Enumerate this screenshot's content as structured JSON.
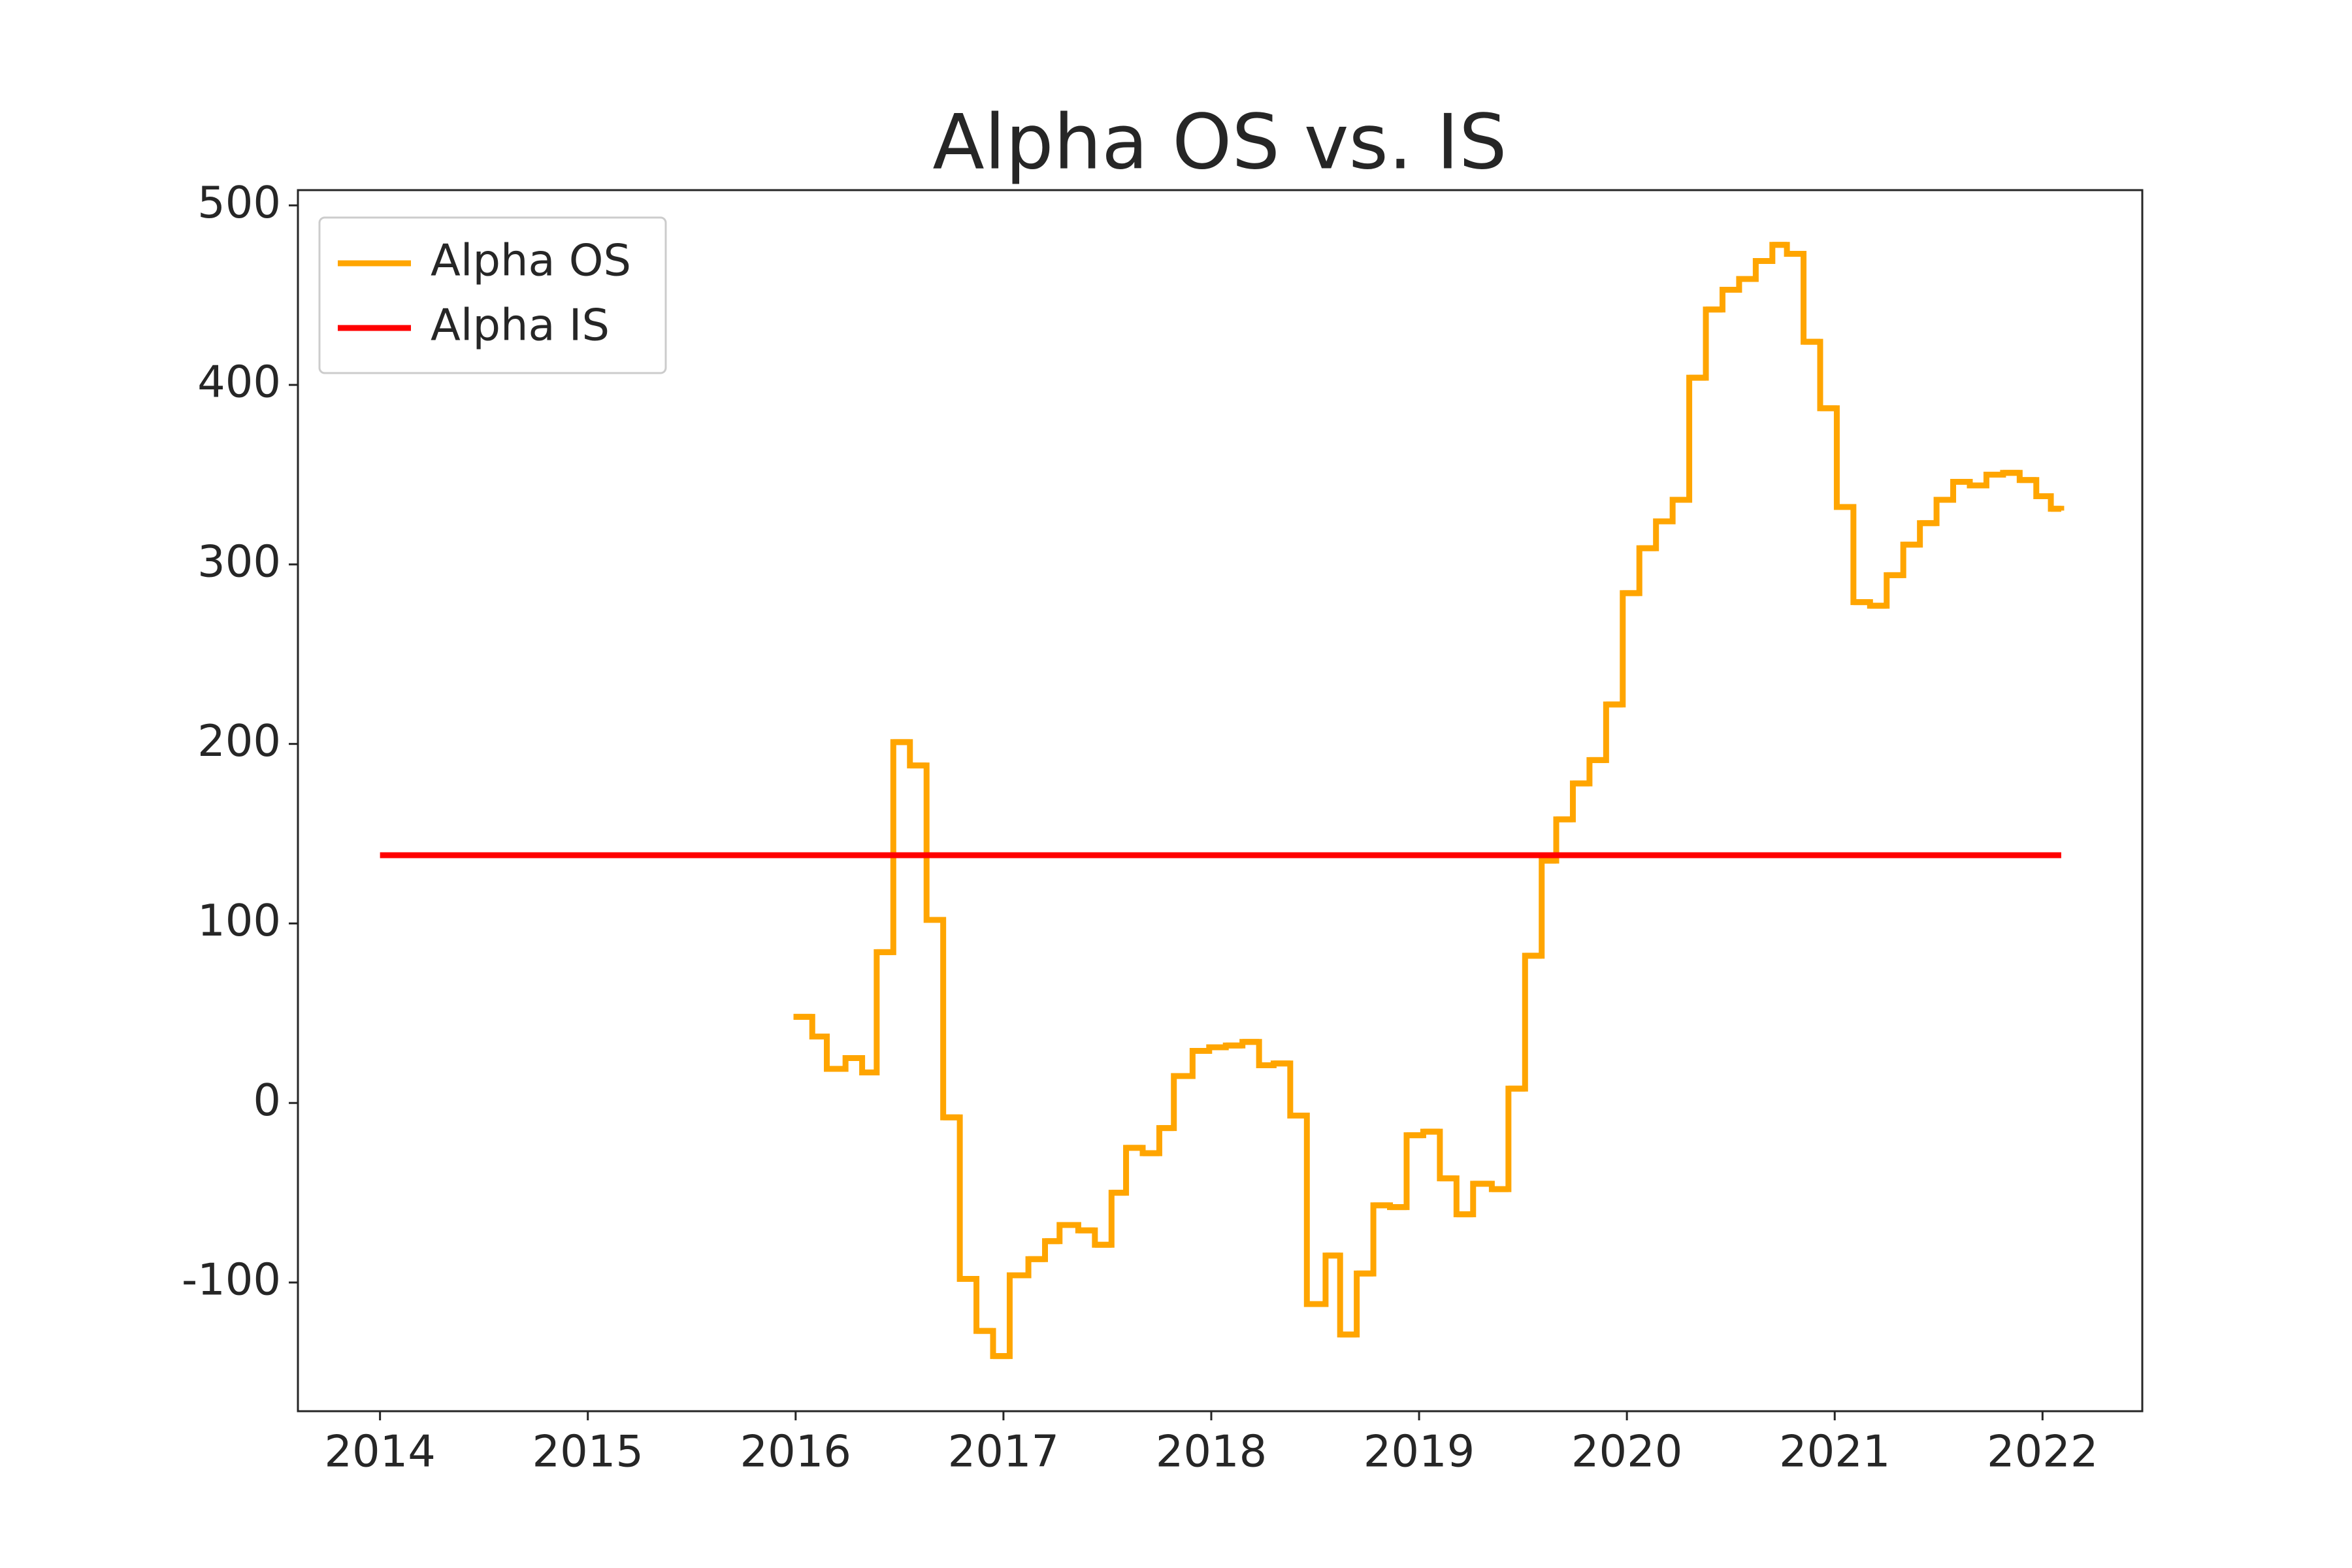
{
  "chart_data": {
    "type": "line",
    "title": "Alpha OS vs. IS",
    "xlim": [
      2013.605,
      2022.48
    ],
    "xticks": [
      2014,
      2015,
      2016,
      2017,
      2018,
      2019,
      2020,
      2021,
      2022
    ],
    "ylim": [
      -171.7,
      508.5
    ],
    "yticks": [
      -100,
      0,
      100,
      200,
      300,
      400,
      500
    ],
    "grid": false,
    "legend": "upper left",
    "series": [
      {
        "name": "Alpha OS",
        "color": "#ffa500",
        "drawstyle": "steps-post",
        "x": [
          2015.99,
          2016.08,
          2016.15,
          2016.24,
          2016.32,
          2016.39,
          2016.47,
          2016.55,
          2016.63,
          2016.71,
          2016.79,
          2016.87,
          2016.95,
          2017.03,
          2017.12,
          2017.2,
          2017.27,
          2017.36,
          2017.44,
          2017.52,
          2017.59,
          2017.67,
          2017.75,
          2017.82,
          2017.91,
          2017.99,
          2018.07,
          2018.15,
          2018.23,
          2018.3,
          2018.38,
          2018.46,
          2018.55,
          2018.62,
          2018.7,
          2018.78,
          2018.86,
          2018.94,
          2019.02,
          2019.1,
          2019.18,
          2019.26,
          2019.35,
          2019.43,
          2019.51,
          2019.59,
          2019.66,
          2019.74,
          2019.82,
          2019.9,
          2019.98,
          2020.06,
          2020.14,
          2020.22,
          2020.3,
          2020.38,
          2020.46,
          2020.54,
          2020.62,
          2020.7,
          2020.77,
          2020.85,
          2020.93,
          2021.01,
          2021.09,
          2021.17,
          2021.25,
          2021.33,
          2021.41,
          2021.49,
          2021.57,
          2021.65,
          2021.73,
          2021.81,
          2021.89,
          2021.97,
          2022.04,
          2022.09
        ],
        "values": [
          48,
          37,
          19,
          25,
          17,
          84,
          201,
          188,
          102,
          -8,
          -98,
          -127,
          -141,
          -96,
          -87,
          -77,
          -68,
          -71,
          -79,
          -50,
          -25,
          -28,
          -14,
          15,
          29,
          31,
          32,
          34,
          21,
          22,
          -7,
          -112,
          -85,
          -129,
          -95,
          -57,
          -58,
          -18,
          -16,
          -42,
          -62,
          -45,
          -48,
          8,
          82,
          135,
          158,
          178,
          191,
          222,
          284,
          309,
          324,
          336,
          404,
          442,
          453,
          459,
          469,
          478,
          473,
          424,
          387,
          332,
          279,
          277,
          294,
          311,
          323,
          336,
          346,
          344,
          350,
          351,
          347,
          338,
          331,
          330
        ]
      },
      {
        "name": "Alpha IS",
        "color": "#ff0000",
        "x": [
          2014,
          2022.09
        ],
        "values": [
          138,
          138
        ]
      }
    ]
  }
}
